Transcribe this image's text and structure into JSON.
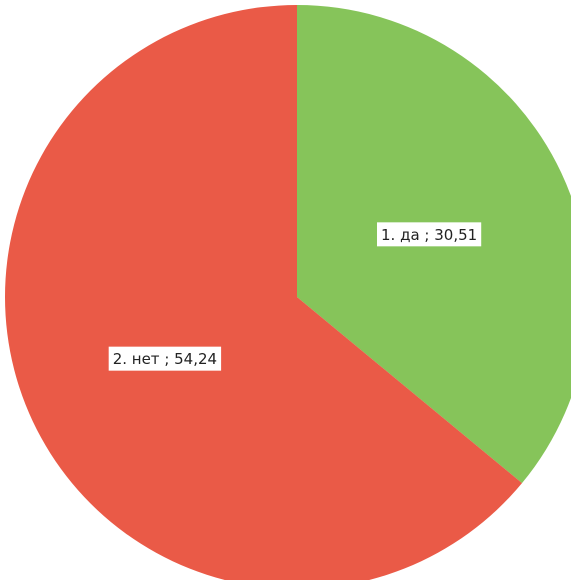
{
  "chart_data": {
    "type": "pie",
    "categories": [
      "1. да",
      "2. нет"
    ],
    "values": [
      30.51,
      54.24
    ],
    "value_labels": [
      "30,51",
      "54,24"
    ],
    "label_separator": " ; ",
    "colors": [
      "#86c45a",
      "#ea5a47"
    ]
  }
}
